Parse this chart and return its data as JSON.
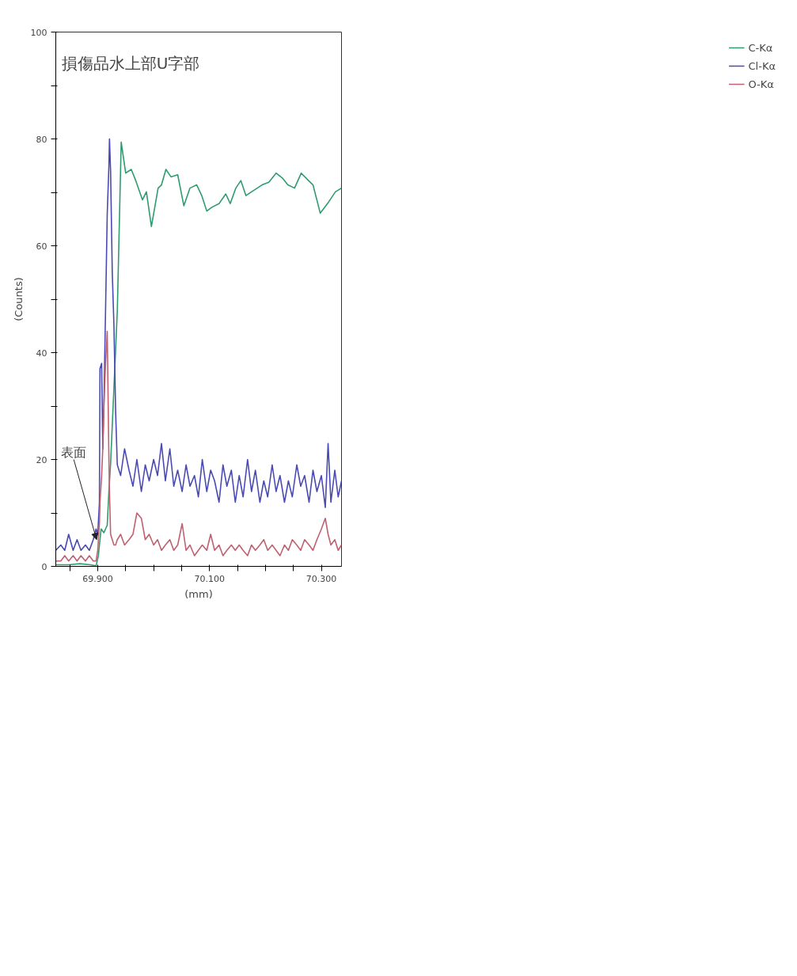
{
  "chart_data": {
    "type": "line",
    "xlabel": "(mm)",
    "ylabel": "(Counts)",
    "annotations": [
      "損傷品水上部U字部",
      {
        "text": "表面",
        "x": 69.898,
        "y": 5
      }
    ],
    "xlim": [
      69.825,
      70.336
    ],
    "ylim": [
      0,
      100
    ],
    "xticks": [
      {
        "value": 69.85,
        "label": null
      },
      {
        "value": 69.9,
        "label": "69.900"
      },
      {
        "value": 69.95,
        "label": null
      },
      {
        "value": 70.0,
        "label": null
      },
      {
        "value": 70.05,
        "label": null
      },
      {
        "value": 70.1,
        "label": "70.100"
      },
      {
        "value": 70.15,
        "label": null
      },
      {
        "value": 70.2,
        "label": null
      },
      {
        "value": 70.25,
        "label": null
      },
      {
        "value": 70.3,
        "label": "70.300"
      }
    ],
    "yticks": [
      0,
      {
        "value": 10,
        "label": null
      },
      20,
      {
        "value": 30,
        "label": null
      },
      40,
      {
        "value": 50,
        "label": null
      },
      60,
      {
        "value": 70,
        "label": null
      },
      80,
      {
        "value": 90,
        "label": null
      },
      100
    ],
    "legend": "top right",
    "grid": false,
    "x": [
      70.336,
      70.33,
      70.324,
      70.317,
      70.312,
      70.307,
      70.3,
      70.292,
      70.285,
      70.278,
      70.27,
      70.263,
      70.256,
      70.248,
      70.241,
      70.234,
      70.226,
      70.219,
      70.212,
      70.204,
      70.197,
      70.19,
      70.182,
      70.175,
      70.168,
      70.16,
      70.153,
      70.146,
      70.139,
      70.131,
      70.124,
      70.117,
      70.109,
      70.102,
      70.095,
      70.087,
      70.08,
      70.073,
      70.065,
      70.058,
      70.051,
      70.043,
      70.036,
      70.029,
      70.021,
      70.014,
      70.007,
      70.0,
      69.992,
      69.985,
      69.978,
      69.97,
      69.963,
      69.956,
      69.948,
      69.941,
      69.935,
      69.932,
      69.929,
      69.926,
      69.923,
      69.921,
      69.92,
      69.917,
      69.914,
      69.911,
      69.909,
      69.907,
      69.904,
      69.903,
      69.9,
      69.897,
      69.892,
      69.885,
      69.878,
      69.87,
      69.863,
      69.856,
      69.848,
      69.841,
      69.834,
      69.825
    ],
    "series": [
      {
        "name": "C-Kα",
        "color": "#2e9c6e",
        "x": [
          70.336,
          70.325,
          70.313,
          70.298,
          70.285,
          70.277,
          70.264,
          70.252,
          70.24,
          70.231,
          70.219,
          70.206,
          70.194,
          70.175,
          70.165,
          70.156,
          70.147,
          70.137,
          70.129,
          70.117,
          70.104,
          70.095,
          70.086,
          70.077,
          70.065,
          70.054,
          70.043,
          70.031,
          70.022,
          70.014,
          70.008,
          69.996,
          69.987,
          69.98,
          69.968,
          69.96,
          69.95,
          69.942,
          69.935,
          69.929,
          69.923,
          69.92,
          69.917,
          69.911,
          69.906,
          69.901,
          69.897,
          69.887,
          69.868,
          69.848,
          69.825
        ],
        "values": [
          70.8,
          70.1,
          68.2,
          66.1,
          71.4,
          72.2,
          73.6,
          70.8,
          71.4,
          72.6,
          73.6,
          71.9,
          71.4,
          70.1,
          69.4,
          72.2,
          70.8,
          67.9,
          69.7,
          67.9,
          67.2,
          66.5,
          69.4,
          71.4,
          70.8,
          67.5,
          73.3,
          72.9,
          74.3,
          71.4,
          70.8,
          63.6,
          70.1,
          68.6,
          72.2,
          74.3,
          73.6,
          79.4,
          47.8,
          33.5,
          19.2,
          14.1,
          7.7,
          6.3,
          7.0,
          1.9,
          0.1,
          0.3,
          0.5,
          0.3,
          0.3
        ]
      },
      {
        "name": "Cl-Kα",
        "color": "#4a4ab4",
        "values": [
          16,
          13,
          18,
          12,
          23,
          11,
          17,
          14,
          18,
          12,
          17,
          15,
          19,
          13,
          16,
          12,
          17,
          14,
          19,
          13,
          16,
          12,
          18,
          14,
          20,
          13,
          17,
          12,
          18,
          15,
          19,
          12,
          16,
          18,
          14,
          20,
          13,
          17,
          15,
          19,
          14,
          18,
          15,
          22,
          16,
          23,
          17,
          20,
          16,
          19,
          14,
          20,
          15,
          18,
          22,
          17,
          19,
          29,
          45,
          55,
          74,
          80,
          75,
          66,
          48,
          30,
          22,
          38,
          37,
          12,
          6,
          7,
          5,
          3,
          4,
          3,
          5,
          3,
          6,
          3,
          4,
          3
        ]
      },
      {
        "name": "O-Kα",
        "color": "#c06070",
        "values": [
          4,
          3,
          5,
          4,
          6,
          9,
          7,
          5,
          3,
          4,
          5,
          3,
          4,
          5,
          3,
          4,
          2,
          3,
          4,
          3,
          5,
          4,
          3,
          4,
          2,
          3,
          4,
          3,
          4,
          3,
          2,
          4,
          3,
          6,
          3,
          4,
          3,
          2,
          4,
          3,
          8,
          4,
          3,
          5,
          4,
          3,
          5,
          4,
          6,
          5,
          9,
          10,
          6,
          5,
          4,
          6,
          5,
          4,
          4,
          5,
          6,
          14,
          20,
          44,
          38,
          30,
          22,
          17,
          12,
          8,
          3,
          1,
          1,
          2,
          1,
          2,
          1,
          2,
          1,
          2,
          1,
          1
        ]
      }
    ]
  }
}
